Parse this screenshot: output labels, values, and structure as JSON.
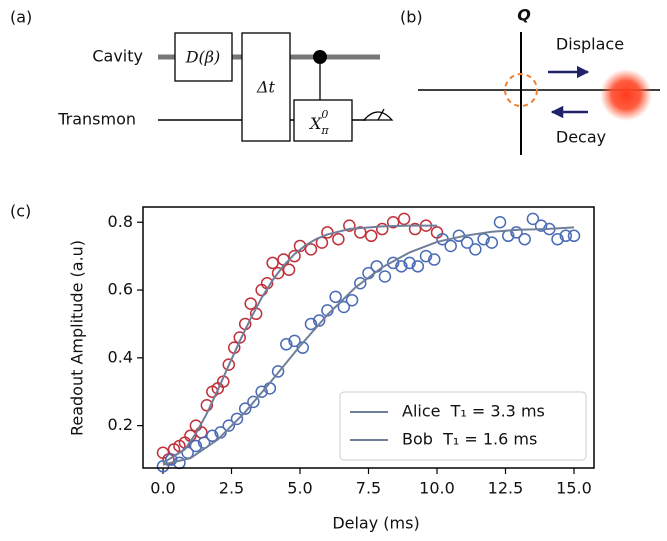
{
  "panel_labels": [
    "(a)",
    "(b)",
    "(c)"
  ],
  "circuit": {
    "wires": [
      "Cavity",
      "Transmon"
    ],
    "displace_gate": "D(β)",
    "wait_gate": "Δt",
    "x_gate": {
      "base": "X",
      "sub": "π",
      "sup": "0"
    }
  },
  "phase_space": {
    "axis_label": "Q",
    "displace": "Displace",
    "decay": "Decay"
  },
  "chart_data": {
    "type": "scatter",
    "x_label": "Delay (ms)",
    "y_label": "Readout Amplitude (a.u)",
    "xlim": [
      -0.73,
      15.73
    ],
    "ylim": [
      0.075,
      0.845
    ],
    "xticks": [
      {
        "value": 0,
        "label": "0.0"
      },
      2.5,
      {
        "value": 5,
        "label": "5.0"
      },
      7.5,
      {
        "value": 10,
        "label": "10.0"
      },
      12.5,
      {
        "value": 15,
        "label": "15.0"
      }
    ],
    "yticks": [
      0.2,
      0.4,
      0.6,
      0.8
    ],
    "legend": "lower right",
    "fit_color": "#6f7f99",
    "series": [
      {
        "name": "Alice  T₁ = 3.3 ms",
        "color": "#c0303a",
        "x": [
          0,
          0.2,
          0.4,
          0.6,
          0.8,
          1.0,
          1.2,
          1.4,
          1.6,
          1.8,
          2.0,
          2.2,
          2.4,
          2.6,
          2.8,
          3.0,
          3.2,
          3.4,
          3.6,
          3.8,
          4.0,
          4.2,
          4.4,
          4.6,
          4.8,
          5.0,
          5.4,
          5.8,
          6.0,
          6.4,
          6.8,
          7.2,
          7.6,
          8.0,
          8.4,
          8.8,
          9.2,
          9.6,
          10.0
        ],
        "values": [
          0.12,
          0.1,
          0.13,
          0.14,
          0.15,
          0.17,
          0.2,
          0.18,
          0.26,
          0.3,
          0.31,
          0.33,
          0.38,
          0.43,
          0.46,
          0.5,
          0.56,
          0.53,
          0.6,
          0.62,
          0.68,
          0.65,
          0.69,
          0.66,
          0.7,
          0.73,
          0.72,
          0.74,
          0.77,
          0.75,
          0.79,
          0.77,
          0.76,
          0.78,
          0.8,
          0.81,
          0.78,
          0.79,
          0.77
        ],
        "fit": {
          "x": [
            0,
            0.8,
            1.2,
            1.6,
            2.0,
            2.4,
            2.8,
            3.2,
            3.6,
            4.0,
            4.4,
            4.8,
            5.2,
            5.6,
            6.0,
            6.8,
            8.0,
            9.0,
            10.0
          ],
          "values": [
            0.09,
            0.13,
            0.177,
            0.236,
            0.305,
            0.378,
            0.449,
            0.516,
            0.577,
            0.629,
            0.672,
            0.706,
            0.732,
            0.751,
            0.764,
            0.78,
            0.788,
            0.79,
            0.79
          ]
        }
      },
      {
        "name": "Bob  T₁ = 1.6 ms",
        "color": "#4a6bb5",
        "x": [
          0,
          0.3,
          0.6,
          0.9,
          1.2,
          1.5,
          1.8,
          2.1,
          2.4,
          2.7,
          3.0,
          3.3,
          3.6,
          3.9,
          4.2,
          4.5,
          4.8,
          5.1,
          5.4,
          5.7,
          6.0,
          6.3,
          6.6,
          6.9,
          7.2,
          7.5,
          7.8,
          8.1,
          8.4,
          8.7,
          9.0,
          9.3,
          9.6,
          9.9,
          10.2,
          10.5,
          10.8,
          11.1,
          11.4,
          11.7,
          12.0,
          12.3,
          12.6,
          12.9,
          13.2,
          13.5,
          13.8,
          14.1,
          14.4,
          14.7,
          15.0
        ],
        "values": [
          0.08,
          0.1,
          0.09,
          0.12,
          0.14,
          0.15,
          0.17,
          0.18,
          0.2,
          0.22,
          0.25,
          0.27,
          0.3,
          0.31,
          0.36,
          0.44,
          0.45,
          0.43,
          0.5,
          0.51,
          0.54,
          0.58,
          0.55,
          0.57,
          0.62,
          0.65,
          0.67,
          0.64,
          0.68,
          0.67,
          0.68,
          0.67,
          0.7,
          0.69,
          0.75,
          0.73,
          0.76,
          0.74,
          0.72,
          0.75,
          0.74,
          0.8,
          0.76,
          0.77,
          0.75,
          0.81,
          0.79,
          0.78,
          0.75,
          0.76,
          0.76
        ],
        "fit": {
          "x": [
            0,
            1,
            2,
            3,
            4,
            5,
            6,
            7,
            8,
            9,
            10,
            11,
            12,
            13,
            14,
            15
          ],
          "values": [
            0.085,
            0.104,
            0.159,
            0.24,
            0.336,
            0.435,
            0.527,
            0.606,
            0.667,
            0.711,
            0.742,
            0.76,
            0.772,
            0.778,
            0.78,
            0.785
          ]
        }
      }
    ]
  }
}
